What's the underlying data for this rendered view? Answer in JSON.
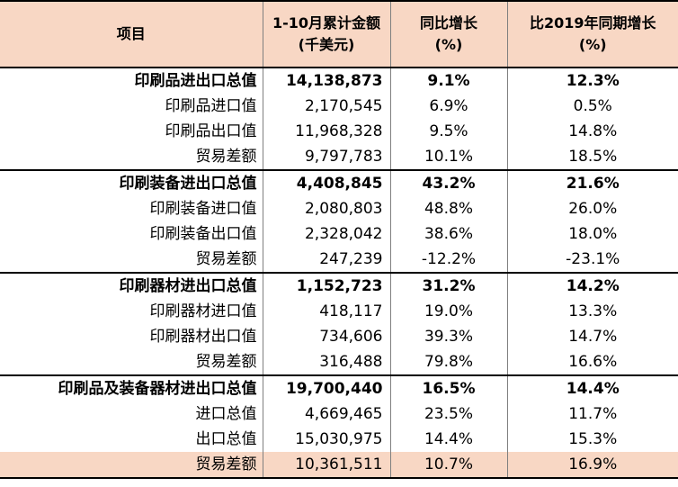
{
  "header": {
    "col_item": "项目",
    "col_value_line1": "1-10月累计金额",
    "col_value_line2": "(千美元)",
    "col_yoy_line1": "同比增长",
    "col_yoy_line2": "(%)",
    "col_vs2019_line1": "比2019年同期增长",
    "col_vs2019_line2": "(%)"
  },
  "rows": [
    {
      "item": "印刷品进出口总值",
      "value": "14,138,873",
      "yoy": "9.1%",
      "vs2019": "12.3%"
    },
    {
      "item": "印刷品进口值",
      "value": "2,170,545",
      "yoy": "6.9%",
      "vs2019": "0.5%"
    },
    {
      "item": "印刷品出口值",
      "value": "11,968,328",
      "yoy": "9.5%",
      "vs2019": "14.8%"
    },
    {
      "item": "贸易差额",
      "value": "9,797,783",
      "yoy": "10.1%",
      "vs2019": "18.5%"
    },
    {
      "item": "印刷装备进出口总值",
      "value": "4,408,845",
      "yoy": "43.2%",
      "vs2019": "21.6%"
    },
    {
      "item": "印刷装备进口值",
      "value": "2,080,803",
      "yoy": "48.8%",
      "vs2019": "26.0%"
    },
    {
      "item": "印刷装备出口值",
      "value": "2,328,042",
      "yoy": "38.6%",
      "vs2019": "18.0%"
    },
    {
      "item": "贸易差额",
      "value": "247,239",
      "yoy": "-12.2%",
      "vs2019": "-23.1%"
    },
    {
      "item": "印刷器材进出口总值",
      "value": "1,152,723",
      "yoy": "31.2%",
      "vs2019": "14.2%"
    },
    {
      "item": "印刷器材进口值",
      "value": "418,117",
      "yoy": "19.0%",
      "vs2019": "13.3%"
    },
    {
      "item": "印刷器材出口值",
      "value": "734,606",
      "yoy": "39.3%",
      "vs2019": "14.7%"
    },
    {
      "item": "贸易差额",
      "value": "316,488",
      "yoy": "79.8%",
      "vs2019": "16.6%"
    },
    {
      "item": "印刷品及装备器材进出口总值",
      "value": "19,700,440",
      "yoy": "16.5%",
      "vs2019": "14.4%"
    },
    {
      "item": "进口总值",
      "value": "4,669,465",
      "yoy": "23.5%",
      "vs2019": "11.7%"
    },
    {
      "item": "出口总值",
      "value": "15,030,975",
      "yoy": "14.4%",
      "vs2019": "15.3%"
    },
    {
      "item": "贸易差额",
      "value": "10,361,511",
      "yoy": "10.7%",
      "vs2019": "16.9%"
    }
  ]
}
